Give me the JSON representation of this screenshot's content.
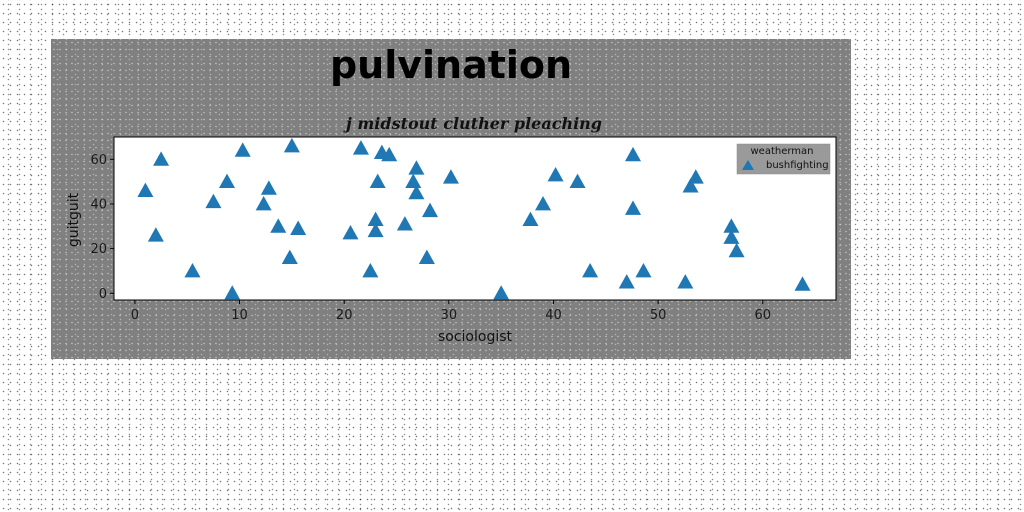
{
  "chart_data": {
    "type": "scatter",
    "title": "pulvination",
    "subtitle": "j midstout cluther pleaching",
    "xlabel": "sociologist",
    "ylabel": "guitguit",
    "xlim": [
      -2,
      67
    ],
    "ylim": [
      -3,
      70
    ],
    "xticks": [
      0,
      10,
      20,
      30,
      40,
      50,
      60
    ],
    "yticks": [
      0,
      20,
      40,
      60
    ],
    "grid": false,
    "legend": {
      "title": "weatherman",
      "placement": "top-right"
    },
    "series": [
      {
        "name": "bushfighting",
        "marker": "triangle",
        "color": "#1f77b4",
        "points": [
          [
            1,
            46
          ],
          [
            2,
            26
          ],
          [
            2.5,
            60
          ],
          [
            5.5,
            10
          ],
          [
            7.5,
            41
          ],
          [
            8.8,
            50
          ],
          [
            9.3,
            0
          ],
          [
            10.3,
            64
          ],
          [
            12.3,
            40
          ],
          [
            12.8,
            47
          ],
          [
            13.7,
            30
          ],
          [
            14.8,
            16
          ],
          [
            15,
            66
          ],
          [
            15.6,
            29
          ],
          [
            20.6,
            27
          ],
          [
            21.6,
            65
          ],
          [
            22.5,
            10
          ],
          [
            23,
            28
          ],
          [
            23,
            33
          ],
          [
            23.2,
            50
          ],
          [
            23.6,
            63
          ],
          [
            24.3,
            62
          ],
          [
            25.8,
            31
          ],
          [
            26.6,
            50
          ],
          [
            26.9,
            45
          ],
          [
            26.9,
            56
          ],
          [
            27.9,
            16
          ],
          [
            28.2,
            37
          ],
          [
            30.2,
            52
          ],
          [
            35,
            0
          ],
          [
            37.8,
            33
          ],
          [
            39,
            40
          ],
          [
            40.2,
            53
          ],
          [
            42.3,
            50
          ],
          [
            43.5,
            10
          ],
          [
            47,
            5
          ],
          [
            47.6,
            38
          ],
          [
            47.6,
            62
          ],
          [
            48.6,
            10
          ],
          [
            52.6,
            5
          ],
          [
            53.1,
            48
          ],
          [
            53.6,
            52
          ],
          [
            57,
            30
          ],
          [
            57,
            25
          ],
          [
            57.5,
            19
          ],
          [
            63.8,
            4
          ]
        ]
      }
    ]
  }
}
